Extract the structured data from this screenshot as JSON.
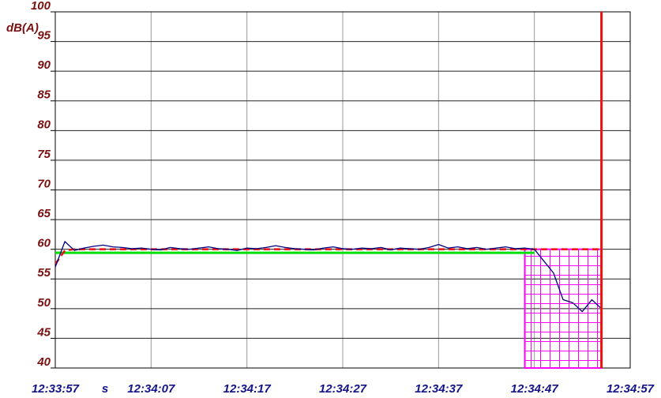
{
  "chart_data": {
    "type": "line",
    "y_label": "dB(A)",
    "x_label": "s",
    "x": [
      "12:33:57",
      "12:33:58",
      "12:33:59",
      "12:34:00",
      "12:34:01",
      "12:34:02",
      "12:34:03",
      "12:34:04",
      "12:34:05",
      "12:34:06",
      "12:34:07",
      "12:34:08",
      "12:34:09",
      "12:34:10",
      "12:34:11",
      "12:34:12",
      "12:34:13",
      "12:34:14",
      "12:34:15",
      "12:34:16",
      "12:34:17",
      "12:34:18",
      "12:34:19",
      "12:34:20",
      "12:34:21",
      "12:34:22",
      "12:34:23",
      "12:34:24",
      "12:34:25",
      "12:34:26",
      "12:34:27",
      "12:34:28",
      "12:34:29",
      "12:34:30",
      "12:34:31",
      "12:34:32",
      "12:34:33",
      "12:34:34",
      "12:34:35",
      "12:34:36",
      "12:34:37",
      "12:34:38",
      "12:34:39",
      "12:34:40",
      "12:34:41",
      "12:34:42",
      "12:34:43",
      "12:34:44",
      "12:34:45",
      "12:34:46",
      "12:34:47",
      "12:34:48",
      "12:34:49",
      "12:34:50",
      "12:34:51",
      "12:34:52",
      "12:34:53",
      "12:34:54"
    ],
    "series": [
      {
        "color": "#00e000",
        "width": 3,
        "dash": false,
        "values": [
          59.4,
          59.4,
          59.4,
          59.4,
          59.4,
          59.4,
          59.4,
          59.4,
          59.4,
          59.4,
          59.4,
          59.4,
          59.4,
          59.4,
          59.4,
          59.4,
          59.4,
          59.4,
          59.4,
          59.4,
          59.4,
          59.4,
          59.4,
          59.4,
          59.4,
          59.4,
          59.4,
          59.4,
          59.4,
          59.4,
          59.4,
          59.4,
          59.4,
          59.4,
          59.4,
          59.4,
          59.4,
          59.4,
          59.4,
          59.4,
          59.4,
          59.4,
          59.4,
          59.4,
          59.4,
          59.4,
          59.4,
          59.4,
          59.4,
          59.4,
          59.4,
          null,
          null,
          null,
          null,
          null,
          null,
          null
        ]
      },
      {
        "color": "#ee1111",
        "width": 2.5,
        "dash": true,
        "values": [
          57.5,
          59.8,
          60,
          60,
          60,
          60,
          60,
          60,
          60,
          60,
          60,
          60,
          60,
          60,
          60,
          60,
          60,
          60,
          60,
          60,
          60,
          60,
          60,
          60,
          60,
          60,
          60,
          60,
          60,
          60,
          60,
          60,
          60,
          60,
          60,
          60,
          60,
          60,
          60,
          60,
          60,
          60,
          60,
          60,
          60,
          60,
          60,
          60,
          60,
          60,
          60,
          60,
          60,
          60,
          60,
          60,
          60,
          60
        ]
      },
      {
        "color": "#000080",
        "width": 1.3,
        "dash": false,
        "values": [
          57,
          61.3,
          59.8,
          60.2,
          60.5,
          60.7,
          60.4,
          60.3,
          60.1,
          60.2,
          60.0,
          59.9,
          60.3,
          60.1,
          60.0,
          60.2,
          60.4,
          60.1,
          60.0,
          59.8,
          60.2,
          60.1,
          60.3,
          60.6,
          60.3,
          60.1,
          60.0,
          59.9,
          60.2,
          60.4,
          60.1,
          60.0,
          60.2,
          60.1,
          60.3,
          59.9,
          60.2,
          60.1,
          60.0,
          60.3,
          60.8,
          60.2,
          60.4,
          60.1,
          60.3,
          60.0,
          60.2,
          60.4,
          60.1,
          60.2,
          60.0,
          58,
          56,
          51.5,
          51,
          49.5,
          51.5,
          50
        ]
      }
    ],
    "region": {
      "x": [
        "12:34:46",
        "12:34:54"
      ],
      "y": [
        40,
        60
      ],
      "color": "#ff00ff"
    },
    "cursor": {
      "x": "12:34:54",
      "color": "#ee1111"
    },
    "xlim": [
      "12:33:57",
      "12:34:57"
    ],
    "xticks": [
      "12:33:57",
      "12:34:07",
      "12:34:17",
      "12:34:27",
      "12:34:37",
      "12:34:47",
      "12:34:57"
    ],
    "ylim": [
      40,
      100
    ],
    "yticks": [
      40,
      45,
      50,
      55,
      60,
      65,
      70,
      75,
      80,
      85,
      90,
      95,
      100
    ],
    "grid": true
  }
}
